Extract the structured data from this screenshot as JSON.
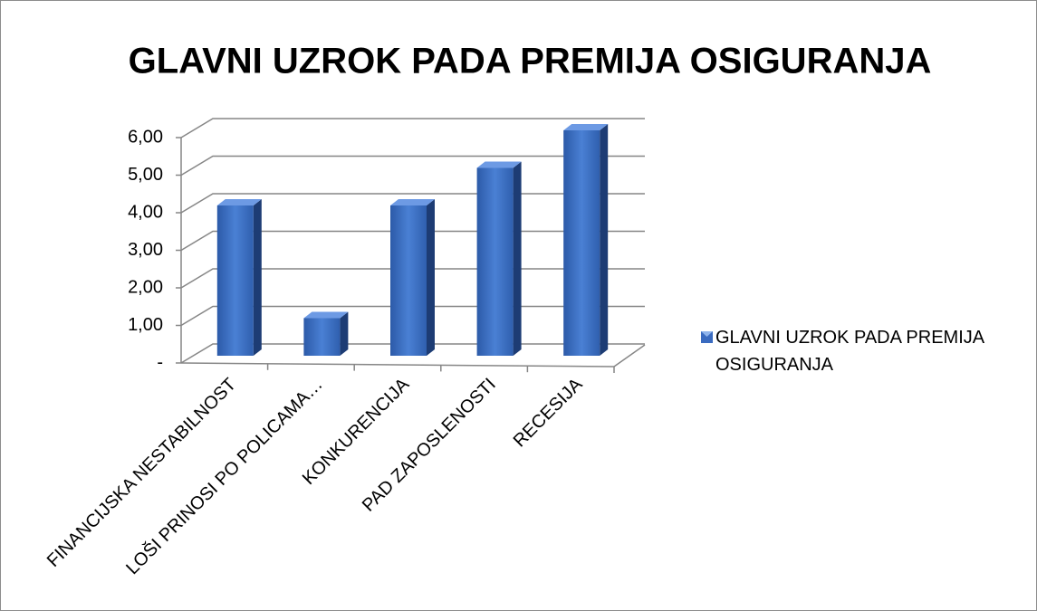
{
  "chart_data": {
    "type": "bar3d",
    "title": "GLAVNI UZROK PADA PREMIJA OSIGURANJA",
    "categories": [
      "FINANCIJSKA NESTABILNOST",
      "LOŠI PRINOSI PO POLICAMA…",
      "KONKURENCIJA",
      "PAD ZAPOSLENOSTI",
      "RECESIJA"
    ],
    "series": [
      {
        "name": "GLAVNI UZROK PADA PREMIJA OSIGURANJA",
        "color": "#3a6bc0",
        "values": [
          4,
          1,
          4,
          5,
          6
        ]
      }
    ],
    "ylim": [
      0,
      6
    ],
    "yticks": [
      {
        "value": 0,
        "label": "-"
      },
      {
        "value": 1,
        "label": "1,00"
      },
      {
        "value": 2,
        "label": "2,00"
      },
      {
        "value": 3,
        "label": "3,00"
      },
      {
        "value": 4,
        "label": "4,00"
      },
      {
        "value": 5,
        "label": "5,00"
      },
      {
        "value": 6,
        "label": "6,00"
      }
    ],
    "grid": true,
    "legend": "right"
  }
}
